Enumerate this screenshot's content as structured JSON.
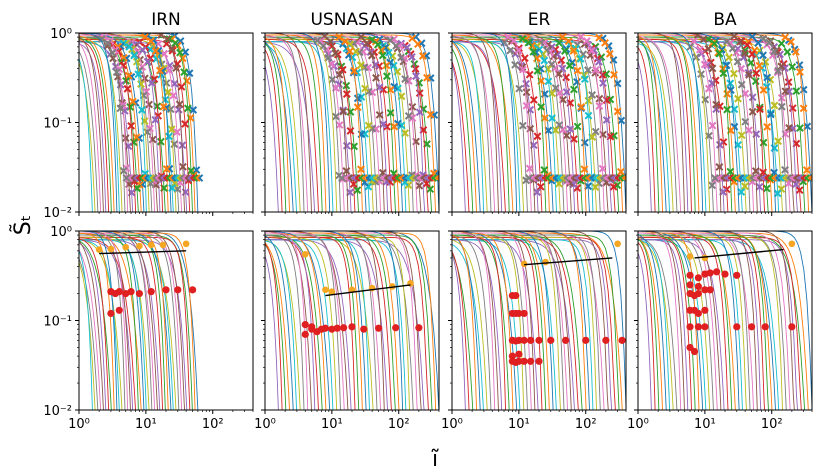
{
  "figure": {
    "ylabel": "S̃ₜ",
    "xlabel": "ĩ",
    "palette": [
      "#1f77b4",
      "#ff7f0e",
      "#2ca02c",
      "#d62728",
      "#9467bd",
      "#8c564b",
      "#e377c2",
      "#7f7f7f",
      "#bcbd22",
      "#17becf"
    ],
    "marker_colors": {
      "top": "mixed series colors, x markers",
      "bottom_orange": "#f5a623",
      "bottom_red": "#e02020",
      "fit_line": "#000000"
    }
  },
  "chart_data": [
    {
      "type": "line",
      "title": "IRN",
      "row": "top",
      "xscale": "log",
      "yscale": "log",
      "xlim": [
        1,
        400
      ],
      "ylim": [
        0.01,
        1
      ],
      "x_ticks": [],
      "y_ticks": [
        "10⁰",
        "10⁻¹",
        "10⁻²"
      ],
      "n_series": 40,
      "max_x": 60,
      "series_markers": "x"
    },
    {
      "type": "line",
      "title": "USNASAN",
      "row": "top",
      "xscale": "log",
      "yscale": "log",
      "xlim": [
        1,
        400
      ],
      "ylim": [
        0.01,
        1
      ],
      "x_ticks": [],
      "y_ticks": [],
      "n_series": 45,
      "max_x": 400,
      "series_markers": "x"
    },
    {
      "type": "line",
      "title": "ER",
      "row": "top",
      "xscale": "log",
      "yscale": "log",
      "xlim": [
        1,
        400
      ],
      "ylim": [
        0.01,
        1
      ],
      "x_ticks": [],
      "y_ticks": [],
      "n_series": 45,
      "max_x": 400,
      "series_markers": "x"
    },
    {
      "type": "line",
      "title": "BA",
      "row": "top",
      "xscale": "log",
      "yscale": "log",
      "xlim": [
        1,
        400
      ],
      "ylim": [
        0.01,
        1
      ],
      "x_ticks": [],
      "y_ticks": [],
      "n_series": 45,
      "max_x": 400,
      "series_markers": "x"
    },
    {
      "type": "line",
      "title": "",
      "row": "bottom",
      "xscale": "log",
      "yscale": "log",
      "xlim": [
        1,
        400
      ],
      "ylim": [
        0.01,
        1
      ],
      "x_ticks": [
        "10⁰",
        "10¹",
        "10²"
      ],
      "y_ticks": [
        "10⁰",
        "10⁻¹",
        "10⁻²"
      ],
      "n_series": 40,
      "max_x": 60,
      "fit_line": [
        [
          2,
          0.56
        ],
        [
          40,
          0.6
        ]
      ],
      "orange_points": [
        [
          2,
          0.62
        ],
        [
          3,
          0.63
        ],
        [
          5,
          0.66
        ],
        [
          8,
          0.68
        ],
        [
          12,
          0.7
        ],
        [
          18,
          0.7
        ],
        [
          40,
          0.72
        ]
      ],
      "red_points": [
        [
          3,
          0.21
        ],
        [
          3.5,
          0.2
        ],
        [
          4,
          0.21
        ],
        [
          5,
          0.2
        ],
        [
          6,
          0.21
        ],
        [
          8,
          0.2
        ],
        [
          12,
          0.21
        ],
        [
          20,
          0.22
        ],
        [
          30,
          0.22
        ],
        [
          50,
          0.22
        ],
        [
          3,
          0.12
        ],
        [
          4,
          0.13
        ]
      ]
    },
    {
      "type": "line",
      "title": "",
      "row": "bottom",
      "xscale": "log",
      "yscale": "log",
      "xlim": [
        1,
        400
      ],
      "ylim": [
        0.01,
        1
      ],
      "x_ticks": [
        "10⁰",
        "10¹",
        "10²"
      ],
      "y_ticks": [],
      "n_series": 45,
      "max_x": 400,
      "fit_line": [
        [
          8,
          0.19
        ],
        [
          150,
          0.25
        ]
      ],
      "orange_points": [
        [
          4,
          0.55
        ],
        [
          8,
          0.22
        ],
        [
          10,
          0.21
        ],
        [
          20,
          0.22
        ],
        [
          40,
          0.23
        ],
        [
          80,
          0.24
        ],
        [
          150,
          0.26
        ]
      ],
      "red_points": [
        [
          4,
          0.07
        ],
        [
          5,
          0.08
        ],
        [
          6,
          0.075
        ],
        [
          7,
          0.08
        ],
        [
          8,
          0.082
        ],
        [
          10,
          0.08
        ],
        [
          12,
          0.082
        ],
        [
          15,
          0.083
        ],
        [
          20,
          0.085
        ],
        [
          30,
          0.08
        ],
        [
          50,
          0.082
        ],
        [
          90,
          0.083
        ],
        [
          200,
          0.083
        ],
        [
          4,
          0.09
        ],
        [
          5,
          0.085
        ]
      ]
    },
    {
      "type": "line",
      "title": "",
      "row": "bottom",
      "xscale": "log",
      "yscale": "log",
      "xlim": [
        1,
        400
      ],
      "ylim": [
        0.01,
        1
      ],
      "x_ticks": [
        "10⁰",
        "10¹",
        "10²"
      ],
      "y_ticks": [],
      "n_series": 45,
      "max_x": 400,
      "fit_line": [
        [
          12,
          0.42
        ],
        [
          250,
          0.5
        ]
      ],
      "orange_points": [
        [
          300,
          0.72
        ],
        [
          12,
          0.43
        ],
        [
          25,
          0.45
        ]
      ],
      "red_points": [
        [
          8,
          0.19
        ],
        [
          9,
          0.19
        ],
        [
          8,
          0.12
        ],
        [
          9,
          0.12
        ],
        [
          10,
          0.12
        ],
        [
          12,
          0.12
        ],
        [
          8,
          0.06
        ],
        [
          9,
          0.059
        ],
        [
          10,
          0.06
        ],
        [
          12,
          0.06
        ],
        [
          15,
          0.06
        ],
        [
          20,
          0.06
        ],
        [
          30,
          0.06
        ],
        [
          50,
          0.06
        ],
        [
          100,
          0.06
        ],
        [
          200,
          0.06
        ],
        [
          350,
          0.06
        ],
        [
          8,
          0.035
        ],
        [
          9,
          0.034
        ],
        [
          10,
          0.035
        ],
        [
          12,
          0.035
        ],
        [
          15,
          0.035
        ],
        [
          20,
          0.035
        ],
        [
          8,
          0.04
        ],
        [
          10,
          0.042
        ]
      ]
    },
    {
      "type": "line",
      "title": "",
      "row": "bottom",
      "xscale": "log",
      "yscale": "log",
      "xlim": [
        1,
        400
      ],
      "ylim": [
        0.01,
        1
      ],
      "x_ticks": [
        "10⁰",
        "10¹",
        "10²"
      ],
      "y_ticks": [],
      "n_series": 45,
      "max_x": 400,
      "fit_line": [
        [
          7,
          0.5
        ],
        [
          150,
          0.62
        ]
      ],
      "orange_points": [
        [
          200,
          0.72
        ],
        [
          6,
          0.52
        ],
        [
          10,
          0.5
        ]
      ],
      "red_points": [
        [
          6,
          0.32
        ],
        [
          8,
          0.3
        ],
        [
          10,
          0.33
        ],
        [
          12,
          0.34
        ],
        [
          15,
          0.35
        ],
        [
          20,
          0.33
        ],
        [
          30,
          0.32
        ],
        [
          6,
          0.25
        ],
        [
          8,
          0.24
        ],
        [
          10,
          0.22
        ],
        [
          12,
          0.22
        ],
        [
          6,
          0.2
        ],
        [
          7,
          0.19
        ],
        [
          8,
          0.2
        ],
        [
          6,
          0.13
        ],
        [
          7,
          0.13
        ],
        [
          8,
          0.12
        ],
        [
          10,
          0.13
        ],
        [
          6,
          0.085
        ],
        [
          8,
          0.085
        ],
        [
          10,
          0.085
        ],
        [
          30,
          0.085
        ],
        [
          50,
          0.085
        ],
        [
          80,
          0.085
        ],
        [
          200,
          0.085
        ],
        [
          6,
          0.05
        ],
        [
          7,
          0.045
        ]
      ]
    }
  ]
}
